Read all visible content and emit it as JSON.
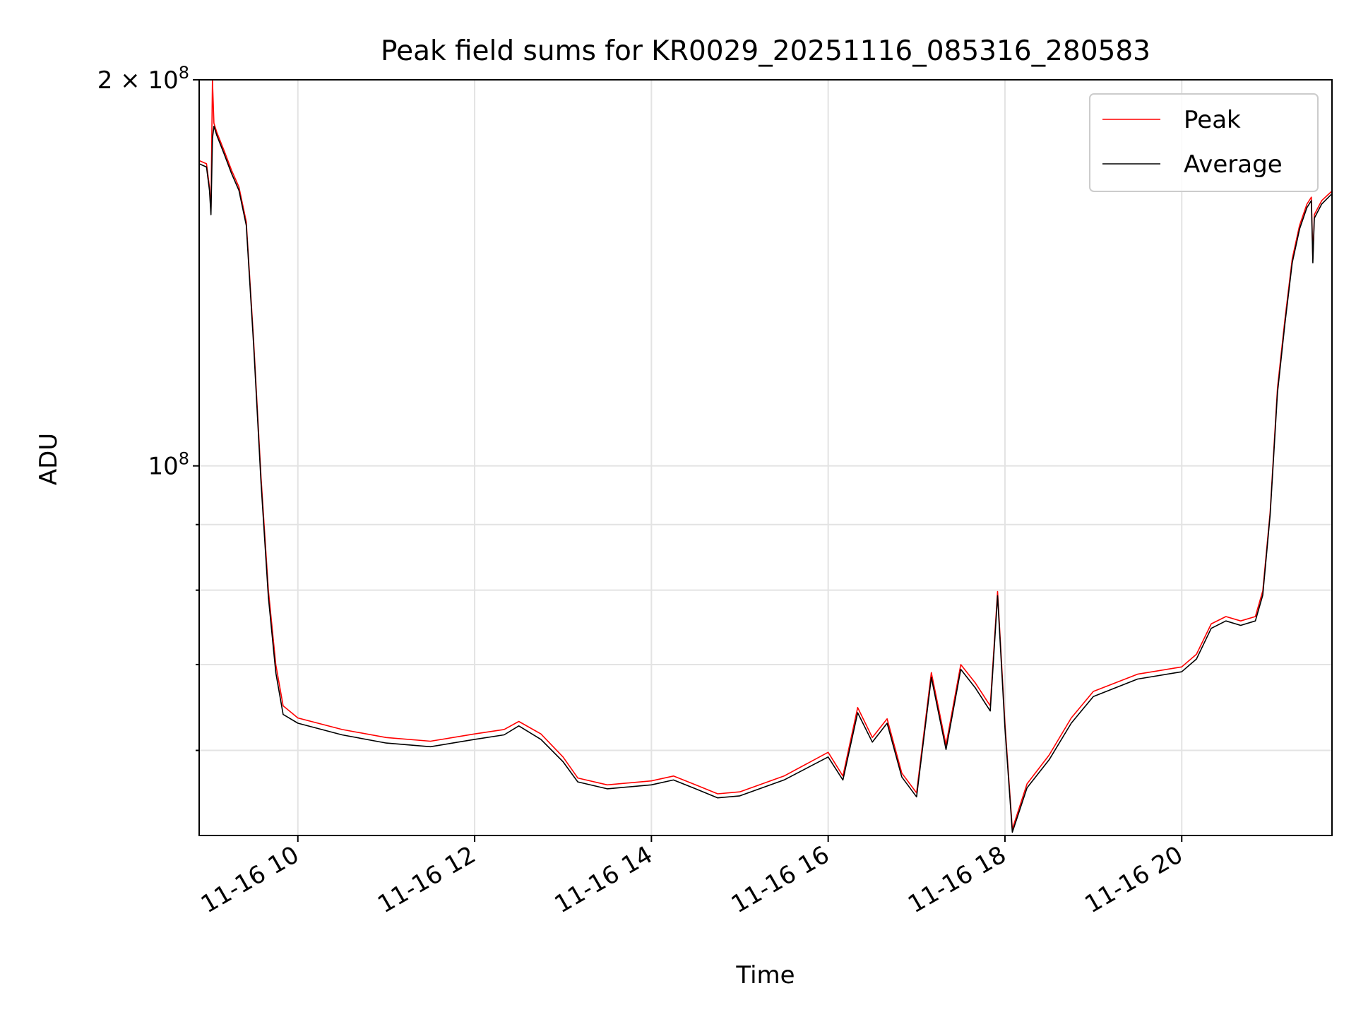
{
  "chart_data": {
    "type": "line",
    "title": "Peak field sums for KR0029_20251116_085316_280583",
    "xlabel": "Time",
    "ylabel": "ADU",
    "yscale": "log",
    "ylim": [
      51500000,
      200000000
    ],
    "xlim": [
      "11-16 08:53",
      "11-16 21:42"
    ],
    "x_ticks": [
      {
        "t": "11-16 10:00",
        "label": "11-16 10"
      },
      {
        "t": "11-16 12:00",
        "label": "11-16 12"
      },
      {
        "t": "11-16 14:00",
        "label": "11-16 14"
      },
      {
        "t": "11-16 16:00",
        "label": "11-16 16"
      },
      {
        "t": "11-16 18:00",
        "label": "11-16 18"
      },
      {
        "t": "11-16 20:00",
        "label": "11-16 20"
      }
    ],
    "y_ticks": [
      {
        "v": 100000000,
        "label": "10",
        "exp": "8",
        "major": true
      },
      {
        "v": 200000000,
        "label": "2 × 10",
        "exp": "8",
        "major": true
      },
      {
        "v": 60000000,
        "label": "",
        "exp": "",
        "major": false
      },
      {
        "v": 70000000,
        "label": "",
        "exp": "",
        "major": false
      },
      {
        "v": 80000000,
        "label": "",
        "exp": "",
        "major": false
      },
      {
        "v": 90000000,
        "label": "",
        "exp": "",
        "major": false
      }
    ],
    "grid": true,
    "legend_position": "top-right",
    "series": [
      {
        "name": "Peak",
        "color": "#ff0000",
        "points": [
          [
            "11-16 08:53",
            173000000
          ],
          [
            "11-16 08:58",
            172000000
          ],
          [
            "11-16 09:00",
            165000000
          ],
          [
            "11-16 09:01",
            158000000
          ],
          [
            "11-16 09:02",
            200000000
          ],
          [
            "11-16 09:03",
            185000000
          ],
          [
            "11-16 09:05",
            182000000
          ],
          [
            "11-16 09:10",
            176000000
          ],
          [
            "11-16 09:15",
            170000000
          ],
          [
            "11-16 09:20",
            165000000
          ],
          [
            "11-16 09:25",
            155000000
          ],
          [
            "11-16 09:30",
            125000000
          ],
          [
            "11-16 09:35",
            98000000
          ],
          [
            "11-16 09:40",
            80000000
          ],
          [
            "11-16 09:45",
            70000000
          ],
          [
            "11-16 09:50",
            65000000
          ],
          [
            "11-16 10:00",
            63600000
          ],
          [
            "11-16 10:30",
            62300000
          ],
          [
            "11-16 11:00",
            61400000
          ],
          [
            "11-16 11:30",
            61000000
          ],
          [
            "11-16 12:00",
            61800000
          ],
          [
            "11-16 12:20",
            62300000
          ],
          [
            "11-16 12:30",
            63200000
          ],
          [
            "11-16 12:45",
            61800000
          ],
          [
            "11-16 13:00",
            59300000
          ],
          [
            "11-16 13:10",
            57100000
          ],
          [
            "11-16 13:30",
            56400000
          ],
          [
            "11-16 14:00",
            56800000
          ],
          [
            "11-16 14:15",
            57300000
          ],
          [
            "11-16 14:30",
            56400000
          ],
          [
            "11-16 14:45",
            55500000
          ],
          [
            "11-16 15:00",
            55700000
          ],
          [
            "11-16 15:30",
            57300000
          ],
          [
            "11-16 16:00",
            59800000
          ],
          [
            "11-16 16:10",
            57300000
          ],
          [
            "11-16 16:20",
            64800000
          ],
          [
            "11-16 16:30",
            61400000
          ],
          [
            "11-16 16:40",
            63500000
          ],
          [
            "11-16 16:50",
            57600000
          ],
          [
            "11-16 17:00",
            55600000
          ],
          [
            "11-16 17:10",
            69000000
          ],
          [
            "11-16 17:20",
            60600000
          ],
          [
            "11-16 17:30",
            70000000
          ],
          [
            "11-16 17:40",
            67700000
          ],
          [
            "11-16 17:50",
            65000000
          ],
          [
            "11-16 17:55",
            79800000
          ],
          [
            "11-16 18:00",
            63000000
          ],
          [
            "11-16 18:05",
            52100000
          ],
          [
            "11-16 18:15",
            56500000
          ],
          [
            "11-16 18:30",
            59500000
          ],
          [
            "11-16 18:45",
            63600000
          ],
          [
            "11-16 19:00",
            66700000
          ],
          [
            "11-16 19:30",
            68800000
          ],
          [
            "11-16 20:00",
            69700000
          ],
          [
            "11-16 20:10",
            71300000
          ],
          [
            "11-16 20:20",
            75300000
          ],
          [
            "11-16 20:30",
            76300000
          ],
          [
            "11-16 20:40",
            75700000
          ],
          [
            "11-16 20:50",
            76300000
          ],
          [
            "11-16 20:55",
            79900000
          ],
          [
            "11-16 21:00",
            92000000
          ],
          [
            "11-16 21:05",
            115000000
          ],
          [
            "11-16 21:10",
            130000000
          ],
          [
            "11-16 21:15",
            145000000
          ],
          [
            "11-16 21:20",
            154000000
          ],
          [
            "11-16 21:25",
            160000000
          ],
          [
            "11-16 21:28",
            162000000
          ],
          [
            "11-16 21:29",
            145000000
          ],
          [
            "11-16 21:30",
            157000000
          ],
          [
            "11-16 21:35",
            161000000
          ],
          [
            "11-16 21:42",
            163800000
          ]
        ]
      },
      {
        "name": "Average",
        "color": "#000000",
        "points": [
          [
            "11-16 08:53",
            172000000
          ],
          [
            "11-16 08:58",
            171000000
          ],
          [
            "11-16 09:00",
            164000000
          ],
          [
            "11-16 09:01",
            157000000
          ],
          [
            "11-16 09:02",
            180000000
          ],
          [
            "11-16 09:03",
            184000000
          ],
          [
            "11-16 09:05",
            181000000
          ],
          [
            "11-16 09:10",
            175000000
          ],
          [
            "11-16 09:15",
            169000000
          ],
          [
            "11-16 09:20",
            164000000
          ],
          [
            "11-16 09:25",
            154000000
          ],
          [
            "11-16 09:30",
            124000000
          ],
          [
            "11-16 09:35",
            97000000
          ],
          [
            "11-16 09:40",
            79000000
          ],
          [
            "11-16 09:45",
            69000000
          ],
          [
            "11-16 09:50",
            64000000
          ],
          [
            "11-16 10:00",
            63000000
          ],
          [
            "11-16 10:30",
            61700000
          ],
          [
            "11-16 11:00",
            60800000
          ],
          [
            "11-16 11:30",
            60400000
          ],
          [
            "11-16 12:00",
            61200000
          ],
          [
            "11-16 12:20",
            61700000
          ],
          [
            "11-16 12:30",
            62700000
          ],
          [
            "11-16 12:45",
            61200000
          ],
          [
            "11-16 13:00",
            58800000
          ],
          [
            "11-16 13:10",
            56700000
          ],
          [
            "11-16 13:30",
            56000000
          ],
          [
            "11-16 14:00",
            56400000
          ],
          [
            "11-16 14:15",
            56900000
          ],
          [
            "11-16 14:30",
            56000000
          ],
          [
            "11-16 14:45",
            55100000
          ],
          [
            "11-16 15:00",
            55300000
          ],
          [
            "11-16 15:30",
            56900000
          ],
          [
            "11-16 16:00",
            59300000
          ],
          [
            "11-16 16:10",
            56900000
          ],
          [
            "11-16 16:20",
            64200000
          ],
          [
            "11-16 16:30",
            60900000
          ],
          [
            "11-16 16:40",
            63000000
          ],
          [
            "11-16 16:50",
            57200000
          ],
          [
            "11-16 17:00",
            55200000
          ],
          [
            "11-16 17:10",
            68400000
          ],
          [
            "11-16 17:20",
            60100000
          ],
          [
            "11-16 17:30",
            69400000
          ],
          [
            "11-16 17:40",
            67100000
          ],
          [
            "11-16 17:50",
            64400000
          ],
          [
            "11-16 17:55",
            79200000
          ],
          [
            "11-16 18:00",
            62500000
          ],
          [
            "11-16 18:05",
            51800000
          ],
          [
            "11-16 18:15",
            56100000
          ],
          [
            "11-16 18:30",
            59000000
          ],
          [
            "11-16 18:45",
            63000000
          ],
          [
            "11-16 19:00",
            66100000
          ],
          [
            "11-16 19:30",
            68200000
          ],
          [
            "11-16 20:00",
            69100000
          ],
          [
            "11-16 20:10",
            70700000
          ],
          [
            "11-16 20:20",
            74700000
          ],
          [
            "11-16 20:30",
            75700000
          ],
          [
            "11-16 20:40",
            75100000
          ],
          [
            "11-16 20:50",
            75700000
          ],
          [
            "11-16 20:55",
            79300000
          ],
          [
            "11-16 21:00",
            91500000
          ],
          [
            "11-16 21:05",
            114000000
          ],
          [
            "11-16 21:10",
            129000000
          ],
          [
            "11-16 21:15",
            144000000
          ],
          [
            "11-16 21:20",
            153000000
          ],
          [
            "11-16 21:25",
            159000000
          ],
          [
            "11-16 21:28",
            161000000
          ],
          [
            "11-16 21:29",
            144000000
          ],
          [
            "11-16 21:30",
            156000000
          ],
          [
            "11-16 21:35",
            160000000
          ],
          [
            "11-16 21:42",
            163000000
          ]
        ]
      }
    ]
  }
}
